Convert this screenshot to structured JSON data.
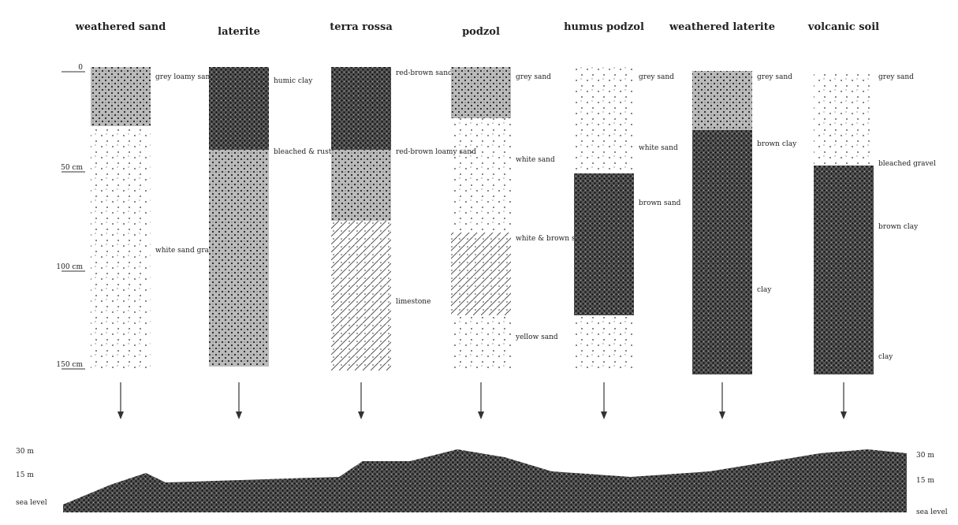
{
  "columns": [
    {
      "title": "weathered sand",
      "labels": [
        "grey loamy sand",
        "white sand gravel"
      ]
    },
    {
      "title": "laterite",
      "labels": [
        "humic clay",
        "bleached & rust"
      ]
    },
    {
      "title": "terra rossa",
      "labels": [
        "red-brown sand",
        "red-brown loamy sand",
        "limestone"
      ]
    },
    {
      "title": "podzol",
      "labels": [
        "grey sand",
        "white sand",
        "white & brown sand",
        "yellow sand"
      ]
    },
    {
      "title": "humus podzol",
      "labels": [
        "grey sand",
        "white sand",
        "brown sand"
      ]
    },
    {
      "title": "weathered laterite",
      "labels": [
        "grey sand",
        "brown clay",
        "clay"
      ]
    },
    {
      "title": "volcanic soil",
      "labels": [
        "grey sand",
        "bleached gravel",
        "brown clay",
        "clay"
      ]
    }
  ],
  "depth_labels": [
    "0",
    "50 cm",
    "100 cm",
    "150 cm"
  ],
  "elevation_labels": [
    "30 m",
    "15 m",
    "sea level"
  ]
}
